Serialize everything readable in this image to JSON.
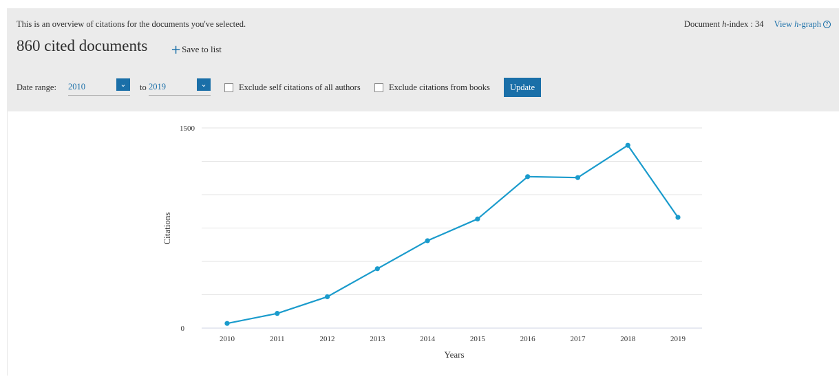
{
  "header": {
    "intro": "This is an overview of citations for the documents you've selected.",
    "title": "860 cited documents",
    "save_to_list": "Save to list",
    "h_index_label_prefix": "Document ",
    "h_index_label_h": "h",
    "h_index_label_suffix": "-index : 34",
    "view_h_graph_prefix": "View ",
    "view_h_graph_h": "h",
    "view_h_graph_suffix": "-graph",
    "help_glyph": "?"
  },
  "filters": {
    "date_range_label": "Date range:",
    "from_year": "2010",
    "to_label": "to",
    "to_year": "2019",
    "exclude_self_label": "Exclude self citations of all authors",
    "exclude_self_checked": false,
    "exclude_books_label": "Exclude citations from books",
    "exclude_books_checked": false,
    "update_label": "Update"
  },
  "chart_data": {
    "type": "line",
    "xlabel": "Years",
    "ylabel": "Citations",
    "categories": [
      "2010",
      "2011",
      "2012",
      "2013",
      "2014",
      "2015",
      "2016",
      "2017",
      "2018",
      "2019"
    ],
    "series": [
      {
        "values": [
          35,
          110,
          235,
          445,
          655,
          818,
          1135,
          1128,
          1370,
          830
        ]
      }
    ],
    "ylim": [
      0,
      1500
    ],
    "ytick_labels": [
      "0",
      "1500"
    ],
    "grid": true,
    "line_color": "#1a9bcc"
  }
}
